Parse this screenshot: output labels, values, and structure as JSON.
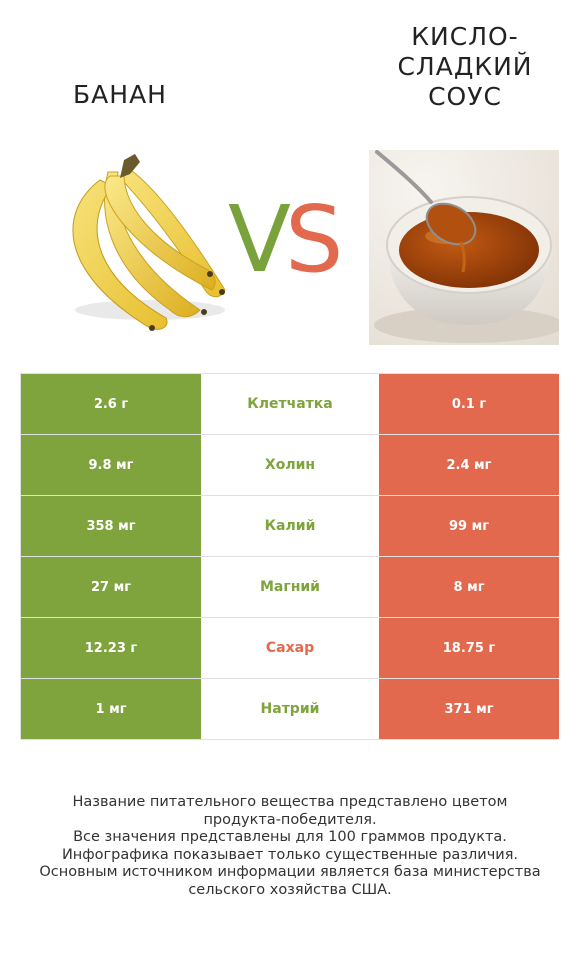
{
  "left_product": {
    "name": "БАНАН",
    "color": "#7fa33d"
  },
  "right_product": {
    "name": "КИСЛО-\nСЛАДКИЙ\nСОУС",
    "color": "#e2694d"
  },
  "vs": {
    "v": "V",
    "s": "S"
  },
  "rows": [
    {
      "left": "2.6 г",
      "label": "Клетчатка",
      "right": "0.1 г",
      "winner": "left"
    },
    {
      "left": "9.8 мг",
      "label": "Холин",
      "right": "2.4 мг",
      "winner": "left"
    },
    {
      "left": "358 мг",
      "label": "Калий",
      "right": "99 мг",
      "winner": "left"
    },
    {
      "left": "27 мг",
      "label": "Магний",
      "right": "8 мг",
      "winner": "left"
    },
    {
      "left": "12.23 г",
      "label": "Сахар",
      "right": "18.75 г",
      "winner": "right"
    },
    {
      "left": "1 мг",
      "label": "Натрий",
      "right": "371 мг",
      "winner": "left"
    }
  ],
  "footer": [
    "Название питательного вещества представлено цветом",
    "продукта-победителя.",
    "Все значения представлены для 100 граммов продукта.",
    "Инфографика показывает только существенные различия.",
    "Основным источником информации является база министерства",
    "сельского хозяйства США."
  ]
}
